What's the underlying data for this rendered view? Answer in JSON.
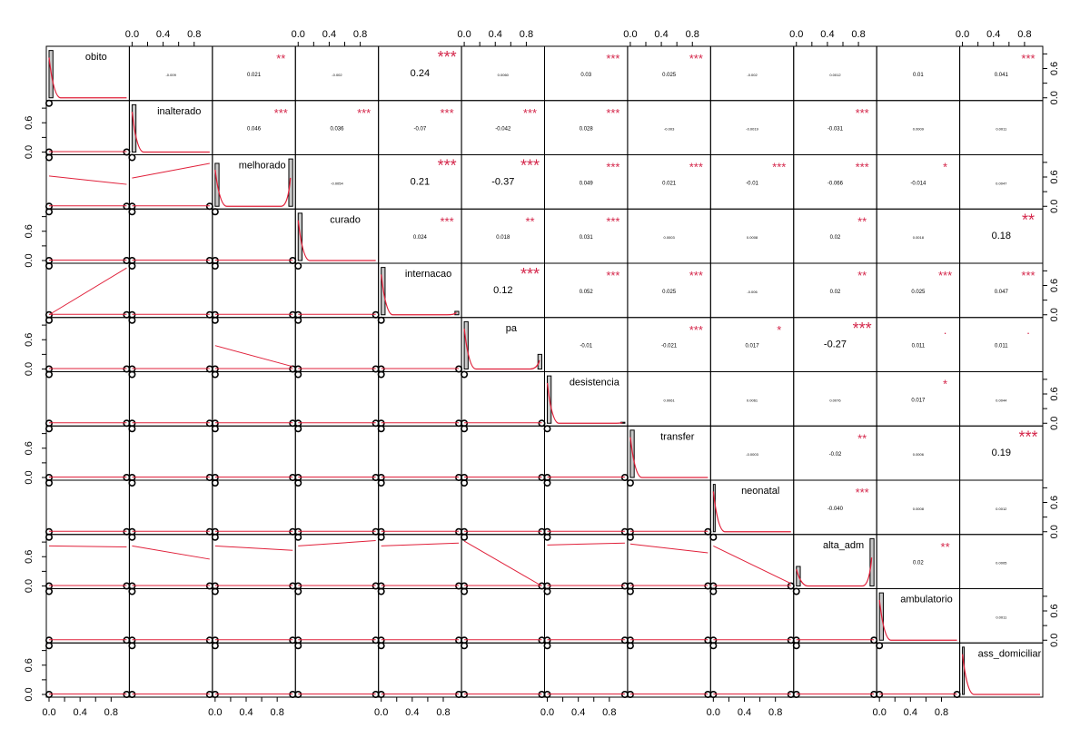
{
  "chart_data": {
    "type": "scatter",
    "subtype": "correlation-matrix",
    "variables": [
      "obito",
      "inalterado",
      "melhorado",
      "curado",
      "internacao",
      "pa",
      "desistencia",
      "transfer",
      "neonatal",
      "alta_adm",
      "ambulatorio",
      "ass_domiciliar"
    ],
    "axis_tick_labels": [
      "0.0",
      "0.4",
      "0.8"
    ],
    "side_tick_labels": [
      "0.0",
      "0.6"
    ],
    "axis_range": [
      0,
      1
    ],
    "colors": {
      "fit_line": "#e0203a",
      "stars": "#d4264a",
      "bars": "#c8c8c8",
      "points": "#000000",
      "text": "#000000"
    },
    "upper_panels": [
      {
        "row": 0,
        "col": 1,
        "r": "-0.009",
        "stars": ""
      },
      {
        "row": 0,
        "col": 2,
        "r": "0.021",
        "stars": "**"
      },
      {
        "row": 0,
        "col": 3,
        "r": "-0.002",
        "stars": ""
      },
      {
        "row": 0,
        "col": 4,
        "r": "0.24",
        "stars": "***"
      },
      {
        "row": 0,
        "col": 5,
        "r": "0.0060",
        "stars": ""
      },
      {
        "row": 0,
        "col": 6,
        "r": "0.03",
        "stars": "***"
      },
      {
        "row": 0,
        "col": 7,
        "r": "0.025",
        "stars": "***"
      },
      {
        "row": 0,
        "col": 8,
        "r": "-0.002",
        "stars": ""
      },
      {
        "row": 0,
        "col": 9,
        "r": "0.0012",
        "stars": ""
      },
      {
        "row": 0,
        "col": 10,
        "r": "0.01",
        "stars": ""
      },
      {
        "row": 0,
        "col": 11,
        "r": "0.041",
        "stars": "***"
      },
      {
        "row": 1,
        "col": 2,
        "r": "0.046",
        "stars": "***"
      },
      {
        "row": 1,
        "col": 3,
        "r": "0.036",
        "stars": "***"
      },
      {
        "row": 1,
        "col": 4,
        "r": "-0.07",
        "stars": "***"
      },
      {
        "row": 1,
        "col": 5,
        "r": "-0.042",
        "stars": "***"
      },
      {
        "row": 1,
        "col": 6,
        "r": "0.028",
        "stars": "***"
      },
      {
        "row": 1,
        "col": 7,
        "r": "-0.003",
        "stars": ""
      },
      {
        "row": 1,
        "col": 8,
        "r": "-0.0019",
        "stars": ""
      },
      {
        "row": 1,
        "col": 9,
        "r": "-0.031",
        "stars": "***"
      },
      {
        "row": 1,
        "col": 10,
        "r": "0.0009",
        "stars": ""
      },
      {
        "row": 1,
        "col": 11,
        "r": "0.0011",
        "stars": ""
      },
      {
        "row": 2,
        "col": 3,
        "r": "-0.0054",
        "stars": ""
      },
      {
        "row": 2,
        "col": 4,
        "r": "0.21",
        "stars": "***"
      },
      {
        "row": 2,
        "col": 5,
        "r": "-0.37",
        "stars": "***"
      },
      {
        "row": 2,
        "col": 6,
        "r": "0.049",
        "stars": "***"
      },
      {
        "row": 2,
        "col": 7,
        "r": "0.021",
        "stars": "***"
      },
      {
        "row": 2,
        "col": 8,
        "r": "-0.01",
        "stars": "***"
      },
      {
        "row": 2,
        "col": 9,
        "r": "-0.066",
        "stars": "***"
      },
      {
        "row": 2,
        "col": 10,
        "r": "-0.014",
        "stars": "*"
      },
      {
        "row": 2,
        "col": 11,
        "r": "0.0047",
        "stars": ""
      },
      {
        "row": 3,
        "col": 4,
        "r": "0.024",
        "stars": "***"
      },
      {
        "row": 3,
        "col": 5,
        "r": "0.018",
        "stars": "**"
      },
      {
        "row": 3,
        "col": 6,
        "r": "0.031",
        "stars": "***"
      },
      {
        "row": 3,
        "col": 7,
        "r": "0.0003",
        "stars": ""
      },
      {
        "row": 3,
        "col": 8,
        "r": "0.0008",
        "stars": ""
      },
      {
        "row": 3,
        "col": 9,
        "r": "0.02",
        "stars": "**"
      },
      {
        "row": 3,
        "col": 10,
        "r": "0.0018",
        "stars": ""
      },
      {
        "row": 3,
        "col": 11,
        "r": "0.18",
        "stars": "**"
      },
      {
        "row": 4,
        "col": 5,
        "r": "0.12",
        "stars": "***"
      },
      {
        "row": 4,
        "col": 6,
        "r": "0.052",
        "stars": "***"
      },
      {
        "row": 4,
        "col": 7,
        "r": "0.025",
        "stars": "***"
      },
      {
        "row": 4,
        "col": 8,
        "r": "-0.006",
        "stars": ""
      },
      {
        "row": 4,
        "col": 9,
        "r": "0.02",
        "stars": "**"
      },
      {
        "row": 4,
        "col": 10,
        "r": "0.025",
        "stars": "***"
      },
      {
        "row": 4,
        "col": 11,
        "r": "0.047",
        "stars": "***"
      },
      {
        "row": 5,
        "col": 6,
        "r": "-0.01",
        "stars": ""
      },
      {
        "row": 5,
        "col": 7,
        "r": "-0.021",
        "stars": "***"
      },
      {
        "row": 5,
        "col": 8,
        "r": "0.017",
        "stars": "*"
      },
      {
        "row": 5,
        "col": 9,
        "r": "-0.27",
        "stars": "***"
      },
      {
        "row": 5,
        "col": 10,
        "r": "0.011",
        "stars": "."
      },
      {
        "row": 5,
        "col": 11,
        "r": "0.011",
        "stars": "."
      },
      {
        "row": 6,
        "col": 7,
        "r": "0.0061",
        "stars": ""
      },
      {
        "row": 6,
        "col": 8,
        "r": "0.0061",
        "stars": ""
      },
      {
        "row": 6,
        "col": 9,
        "r": "0.0076",
        "stars": ""
      },
      {
        "row": 6,
        "col": 10,
        "r": "0.017",
        "stars": "*"
      },
      {
        "row": 6,
        "col": 11,
        "r": "0.0044",
        "stars": ""
      },
      {
        "row": 7,
        "col": 8,
        "r": "-0.0003",
        "stars": ""
      },
      {
        "row": 7,
        "col": 9,
        "r": "-0.02",
        "stars": "**"
      },
      {
        "row": 7,
        "col": 10,
        "r": "0.0006",
        "stars": ""
      },
      {
        "row": 7,
        "col": 11,
        "r": "0.19",
        "stars": "***"
      },
      {
        "row": 8,
        "col": 9,
        "r": "-0.040",
        "stars": "***"
      },
      {
        "row": 8,
        "col": 10,
        "r": "0.0008",
        "stars": ""
      },
      {
        "row": 8,
        "col": 11,
        "r": "0.0012",
        "stars": ""
      },
      {
        "row": 9,
        "col": 10,
        "r": "0.02",
        "stars": "**"
      },
      {
        "row": 9,
        "col": 11,
        "r": "0.0005",
        "stars": ""
      },
      {
        "row": 10,
        "col": 11,
        "r": "0.0011",
        "stars": ""
      }
    ],
    "diagonal_hist": [
      {
        "var": "obito",
        "bar_start": 0.0,
        "bar_end": 0.05,
        "bar_height": 0.97,
        "peak_bar_height": 0.0
      },
      {
        "var": "inalterado",
        "bar_start": 0.0,
        "bar_end": 0.05,
        "bar_height": 0.97,
        "peak_bar_height": 0.0
      },
      {
        "var": "melhorado",
        "bar_start": 0.0,
        "bar_end": 0.05,
        "bar_height": 0.88,
        "peak_bar_height": 0.97
      },
      {
        "var": "curado",
        "bar_start": 0.0,
        "bar_end": 0.05,
        "bar_height": 0.97,
        "peak_bar_height": 0.0
      },
      {
        "var": "internacao",
        "bar_start": 0.0,
        "bar_end": 0.05,
        "bar_height": 0.97,
        "peak_bar_height": 0.07
      },
      {
        "var": "pa",
        "bar_start": 0.0,
        "bar_end": 0.05,
        "bar_height": 0.97,
        "peak_bar_height": 0.3
      },
      {
        "var": "desistencia",
        "bar_start": 0.0,
        "bar_end": 0.05,
        "bar_height": 0.97,
        "peak_bar_height": 0.02
      },
      {
        "var": "transfer",
        "bar_start": 0.0,
        "bar_end": 0.05,
        "bar_height": 0.97,
        "peak_bar_height": 0.0
      },
      {
        "var": "neonatal",
        "bar_start": 0.0,
        "bar_end": 0.02,
        "bar_height": 0.97,
        "peak_bar_height": 0.0
      },
      {
        "var": "alta_adm",
        "bar_start": 0.0,
        "bar_end": 0.05,
        "bar_height": 0.4,
        "peak_bar_height": 0.97
      },
      {
        "var": "ambulatorio",
        "bar_start": 0.0,
        "bar_end": 0.05,
        "bar_height": 0.97,
        "peak_bar_height": 0.0
      },
      {
        "var": "ass_domiciliar",
        "bar_start": 0.0,
        "bar_end": 0.02,
        "bar_height": 0.97,
        "peak_bar_height": 0.0
      }
    ],
    "lower_fit_lines": [
      {
        "row": 2,
        "col": 0,
        "y0": 0.62,
        "y1": 0.45
      },
      {
        "row": 2,
        "col": 1,
        "y0": 0.58,
        "y1": 0.88
      },
      {
        "row": 4,
        "col": 0,
        "y0": 0.0,
        "y1": 0.96
      },
      {
        "row": 5,
        "col": 2,
        "y0": 0.48,
        "y1": 0.05
      },
      {
        "row": 9,
        "col": 0,
        "y0": 0.82,
        "y1": 0.8
      },
      {
        "row": 9,
        "col": 1,
        "y0": 0.82,
        "y1": 0.55
      },
      {
        "row": 9,
        "col": 2,
        "y0": 0.82,
        "y1": 0.73
      },
      {
        "row": 9,
        "col": 3,
        "y0": 0.82,
        "y1": 0.93
      },
      {
        "row": 9,
        "col": 4,
        "y0": 0.82,
        "y1": 0.88
      },
      {
        "row": 9,
        "col": 5,
        "y0": 0.92,
        "y1": 0.0
      },
      {
        "row": 9,
        "col": 6,
        "y0": 0.84,
        "y1": 0.88
      },
      {
        "row": 9,
        "col": 7,
        "y0": 0.86,
        "y1": 0.68
      },
      {
        "row": 9,
        "col": 8,
        "y0": 0.82,
        "y1": 0.05
      }
    ]
  }
}
